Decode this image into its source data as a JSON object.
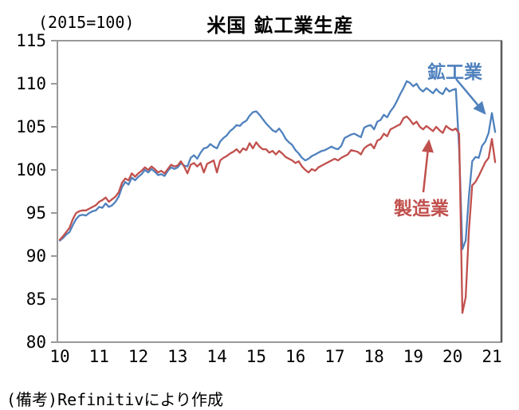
{
  "chart": {
    "title": "米国 鉱工業生産",
    "unit_label": "(2015=100)",
    "source_note": "(備考)Refinitivにより作成",
    "industrial_label": "鉱工業",
    "manufacturing_label": "製造業",
    "industrial_color": "#4F81BD",
    "manufacturing_color": "#C0504D",
    "axis_color": "#999999",
    "right_border_color": "#595959"
  },
  "chart_data": {
    "type": "line",
    "title": "米国 鉱工業生産",
    "unit": "(2015=100)",
    "x_interval": "monthly",
    "x_range": [
      "2010-01",
      "2021-02"
    ],
    "x_tick_labels": [
      "10",
      "11",
      "12",
      "13",
      "14",
      "15",
      "16",
      "17",
      "18",
      "19",
      "20",
      "21"
    ],
    "y_ticks": [
      115,
      110,
      105,
      100,
      95,
      90,
      85,
      80
    ],
    "ylim": [
      80,
      115
    ],
    "grid": false,
    "legend": "inline-labels-with-arrows",
    "series": [
      {
        "name": "鉱工業",
        "color": "#4F81BD",
        "values": [
          91.8,
          92.1,
          92.5,
          92.8,
          93.6,
          94.3,
          94.7,
          94.8,
          94.7,
          95.0,
          95.2,
          95.3,
          95.7,
          95.6,
          96.1,
          95.7,
          95.9,
          96.3,
          96.9,
          98.0,
          98.6,
          98.3,
          99.1,
          98.8,
          99.2,
          99.5,
          100.0,
          99.7,
          100.1,
          99.8,
          99.4,
          99.5,
          99.3,
          99.9,
          100.3,
          100.1,
          100.3,
          100.8,
          100.5,
          100.4,
          101.4,
          101.7,
          101.3,
          102.0,
          102.5,
          102.6,
          103.0,
          102.7,
          102.5,
          103.3,
          103.7,
          104.0,
          104.5,
          104.8,
          105.2,
          105.1,
          105.5,
          105.7,
          106.3,
          106.7,
          106.8,
          106.4,
          105.9,
          105.4,
          105.0,
          104.6,
          104.4,
          104.8,
          104.3,
          103.6,
          103.2,
          102.9,
          102.3,
          101.9,
          101.4,
          101.1,
          101.3,
          101.6,
          101.8,
          102.0,
          102.2,
          102.3,
          102.5,
          102.7,
          102.5,
          102.4,
          102.8,
          103.7,
          103.9,
          104.1,
          104.2,
          104.0,
          103.8,
          104.9,
          105.1,
          105.2,
          104.7,
          105.6,
          105.8,
          106.4,
          106.1,
          106.8,
          107.3,
          108.0,
          108.8,
          109.5,
          110.3,
          110.1,
          109.7,
          110.0,
          109.4,
          109.1,
          109.5,
          109.2,
          108.9,
          109.4,
          109.0,
          108.8,
          109.5,
          109.1,
          109.3,
          109.4,
          102.5,
          90.8,
          91.8,
          97.0,
          101.0,
          101.5,
          101.4,
          102.8,
          103.3,
          104.3,
          106.6,
          104.4
        ]
      },
      {
        "name": "製造業",
        "color": "#C0504D",
        "values": [
          91.9,
          92.3,
          92.8,
          93.3,
          94.3,
          95.0,
          95.2,
          95.3,
          95.3,
          95.5,
          95.7,
          95.9,
          96.3,
          96.5,
          96.8,
          96.3,
          96.6,
          96.9,
          97.4,
          98.5,
          99.0,
          98.8,
          99.6,
          99.2,
          99.6,
          99.9,
          100.3,
          100.0,
          100.4,
          100.1,
          99.7,
          99.9,
          99.6,
          100.1,
          100.6,
          100.4,
          100.5,
          101.0,
          100.4,
          99.6,
          100.6,
          100.8,
          100.4,
          100.8,
          99.7,
          100.7,
          100.9,
          101.1,
          99.7,
          101.1,
          101.4,
          101.6,
          101.9,
          102.1,
          102.4,
          102.0,
          102.5,
          102.3,
          103.1,
          102.5,
          103.2,
          102.7,
          102.4,
          102.4,
          102.0,
          102.2,
          101.8,
          102.2,
          101.9,
          101.5,
          101.3,
          101.1,
          100.8,
          101.0,
          100.4,
          100.0,
          99.7,
          100.1,
          99.9,
          100.3,
          100.5,
          100.7,
          100.9,
          101.1,
          101.3,
          101.1,
          101.4,
          101.6,
          101.8,
          102.3,
          102.2,
          102.1,
          101.8,
          102.5,
          102.8,
          103.0,
          102.5,
          103.4,
          103.6,
          104.2,
          103.9,
          104.7,
          104.9,
          105.1,
          105.3,
          106.0,
          106.2,
          105.8,
          105.3,
          105.6,
          105.0,
          104.7,
          105.1,
          104.8,
          104.5,
          105.0,
          104.6,
          104.3,
          105.1,
          104.8,
          104.6,
          104.8,
          104.2,
          83.4,
          85.2,
          93.0,
          98.2,
          98.6,
          99.3,
          100.1,
          100.9,
          101.4,
          103.6,
          100.9
        ]
      }
    ]
  }
}
